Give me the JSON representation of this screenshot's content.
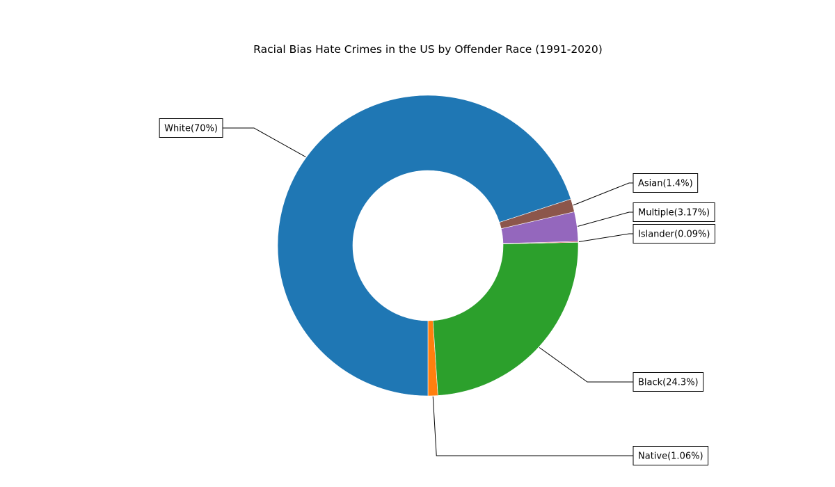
{
  "chart_data": {
    "type": "pie",
    "donut": true,
    "title": "Racial Bias Hate Crimes in the US by Offender Race (1991-2020)",
    "start_angle_deg": 270,
    "direction": "counterclockwise",
    "slices": [
      {
        "label": "Native",
        "value": 1.06,
        "display": "Native(1.06%)",
        "color": "#ff7f0e"
      },
      {
        "label": "Black",
        "value": 24.3,
        "display": "Black(24.3%)",
        "color": "#2ca02c"
      },
      {
        "label": "Islander",
        "value": 0.09,
        "display": "Islander(0.09%)",
        "color": "#d62728"
      },
      {
        "label": "Multiple",
        "value": 3.17,
        "display": "Multiple(3.17%)",
        "color": "#9467bd"
      },
      {
        "label": "Asian",
        "value": 1.4,
        "display": "Asian(1.4%)",
        "color": "#8c564b"
      },
      {
        "label": "White",
        "value": 70,
        "display": "White(70%)",
        "color": "#1f77b4"
      }
    ]
  }
}
